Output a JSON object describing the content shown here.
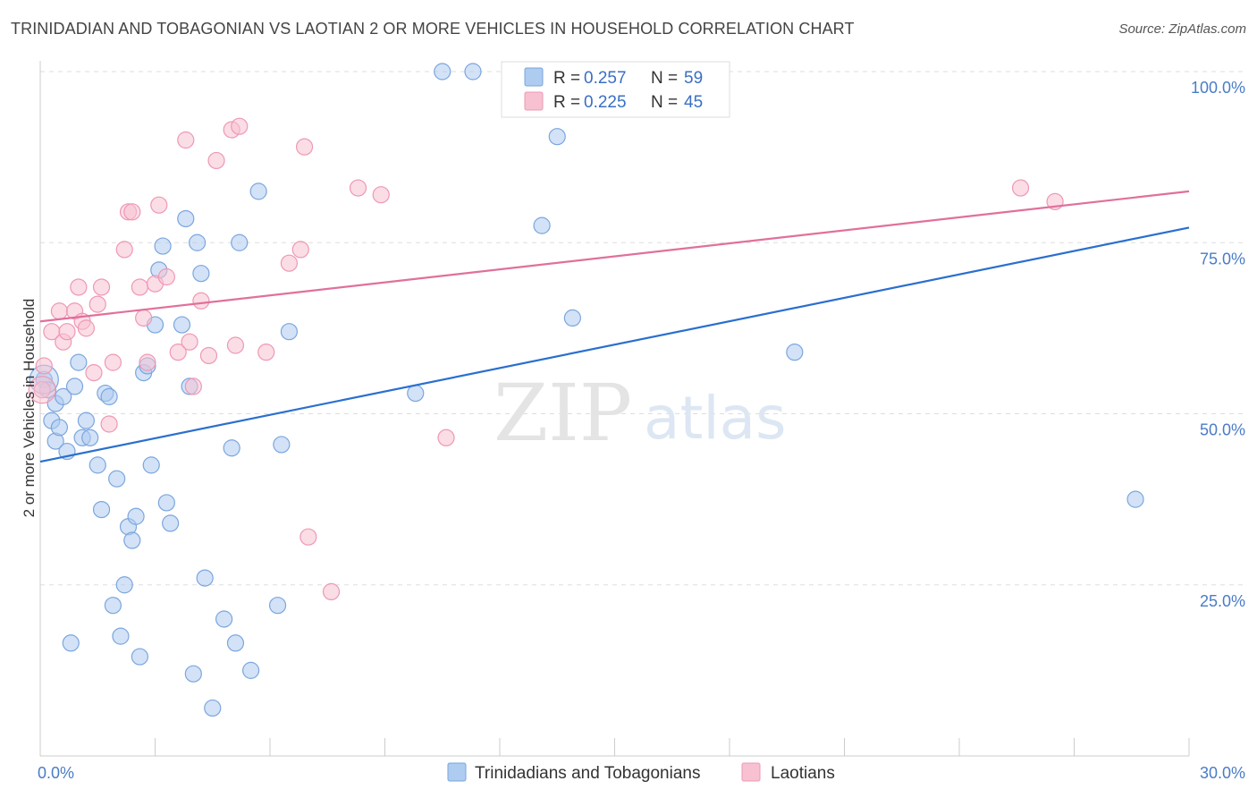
{
  "title": "TRINIDADIAN AND TOBAGONIAN VS LAOTIAN 2 OR MORE VEHICLES IN HOUSEHOLD CORRELATION CHART",
  "source": "Source: ZipAtlas.com",
  "watermark": {
    "zip": "ZIP",
    "atlas": "atlas"
  },
  "colors": {
    "blue_fill": "#aecbf0",
    "blue_stroke": "#7aa6de",
    "blue_line": "#2a6fcf",
    "pink_fill": "#f7c1d1",
    "pink_stroke": "#ee98b4",
    "pink_line": "#e0709a",
    "grid": "#dddddd",
    "axis_label": "#4a7cc7"
  },
  "legend": {
    "rows": [
      {
        "r_label": "R = ",
        "r_value": "0.257",
        "n_label": "N = ",
        "n_value": "59"
      },
      {
        "r_label": "R = ",
        "r_value": "0.225",
        "n_label": "N = ",
        "n_value": "45"
      }
    ]
  },
  "chart_data": {
    "type": "scatter",
    "title": "TRINIDADIAN AND TOBAGONIAN VS LAOTIAN 2 OR MORE VEHICLES IN HOUSEHOLD CORRELATION CHART",
    "xlabel": "",
    "ylabel": "2 or more Vehicles in Household",
    "xlim": [
      0,
      30
    ],
    "ylim": [
      0,
      100
    ],
    "x_tick_labels": [
      "0.0%",
      "30.0%"
    ],
    "y_tick_values": [
      25,
      50,
      75,
      100
    ],
    "y_tick_labels": [
      "25.0%",
      "50.0%",
      "75.0%",
      "100.0%"
    ],
    "grid": true,
    "legend_position": "top-center",
    "series": [
      {
        "name": "Trinidadians and Tobagonians",
        "color": "#aecbf0",
        "r": "0.257",
        "n": "59",
        "trend": {
          "x": [
            0,
            30
          ],
          "y": [
            43.0,
            77.2
          ]
        },
        "points": [
          [
            0.1,
            55.0
          ],
          [
            0.2,
            53.5
          ],
          [
            0.3,
            49.0
          ],
          [
            0.4,
            51.5
          ],
          [
            0.4,
            46.0
          ],
          [
            0.5,
            48.0
          ],
          [
            0.6,
            52.5
          ],
          [
            0.7,
            44.5
          ],
          [
            0.8,
            16.5
          ],
          [
            0.9,
            54.0
          ],
          [
            1.0,
            57.5
          ],
          [
            1.1,
            46.5
          ],
          [
            1.2,
            49.0
          ],
          [
            1.3,
            46.5
          ],
          [
            1.5,
            42.5
          ],
          [
            1.6,
            36.0
          ],
          [
            1.7,
            53.0
          ],
          [
            1.8,
            52.5
          ],
          [
            1.9,
            22.0
          ],
          [
            2.0,
            40.5
          ],
          [
            2.1,
            17.5
          ],
          [
            2.2,
            25.0
          ],
          [
            2.3,
            33.5
          ],
          [
            2.4,
            31.5
          ],
          [
            2.5,
            35.0
          ],
          [
            2.6,
            14.5
          ],
          [
            2.7,
            56.0
          ],
          [
            2.8,
            57.0
          ],
          [
            2.9,
            42.5
          ],
          [
            3.0,
            63.0
          ],
          [
            3.1,
            71.0
          ],
          [
            3.2,
            74.5
          ],
          [
            3.3,
            37.0
          ],
          [
            3.4,
            34.0
          ],
          [
            3.7,
            63.0
          ],
          [
            3.8,
            78.5
          ],
          [
            3.9,
            54.0
          ],
          [
            4.0,
            12.0
          ],
          [
            4.1,
            75.0
          ],
          [
            4.2,
            70.5
          ],
          [
            4.3,
            26.0
          ],
          [
            4.5,
            7.0
          ],
          [
            4.8,
            20.0
          ],
          [
            5.0,
            45.0
          ],
          [
            5.1,
            16.5
          ],
          [
            5.2,
            75.0
          ],
          [
            5.5,
            12.5
          ],
          [
            5.7,
            82.5
          ],
          [
            6.2,
            22.0
          ],
          [
            6.3,
            45.5
          ],
          [
            6.5,
            62.0
          ],
          [
            9.8,
            53.0
          ],
          [
            10.5,
            100.0
          ],
          [
            11.3,
            100.0
          ],
          [
            13.5,
            90.5
          ],
          [
            13.1,
            77.5
          ],
          [
            13.9,
            64.0
          ],
          [
            19.7,
            59.0
          ],
          [
            28.6,
            37.5
          ]
        ]
      },
      {
        "name": "Laotians",
        "color": "#f7c1d1",
        "r": "0.225",
        "n": "45",
        "trend": {
          "x": [
            0,
            30
          ],
          "y": [
            63.5,
            82.5
          ]
        },
        "points": [
          [
            0.1,
            57.0
          ],
          [
            0.3,
            62.0
          ],
          [
            0.5,
            65.0
          ],
          [
            0.6,
            60.5
          ],
          [
            0.7,
            62.0
          ],
          [
            0.9,
            65.0
          ],
          [
            1.0,
            68.5
          ],
          [
            1.1,
            63.5
          ],
          [
            1.2,
            62.5
          ],
          [
            1.4,
            56.0
          ],
          [
            1.5,
            66.0
          ],
          [
            1.6,
            68.5
          ],
          [
            1.8,
            48.5
          ],
          [
            1.9,
            57.5
          ],
          [
            2.2,
            74.0
          ],
          [
            2.3,
            79.5
          ],
          [
            2.4,
            79.5
          ],
          [
            2.6,
            68.5
          ],
          [
            2.7,
            64.0
          ],
          [
            2.8,
            57.5
          ],
          [
            3.0,
            69.0
          ],
          [
            3.1,
            80.5
          ],
          [
            3.3,
            70.0
          ],
          [
            3.6,
            59.0
          ],
          [
            3.8,
            90.0
          ],
          [
            3.9,
            60.5
          ],
          [
            4.0,
            54.0
          ],
          [
            4.2,
            66.5
          ],
          [
            4.4,
            58.5
          ],
          [
            4.6,
            87.0
          ],
          [
            5.0,
            91.5
          ],
          [
            5.1,
            60.0
          ],
          [
            5.2,
            92.0
          ],
          [
            5.9,
            59.0
          ],
          [
            6.5,
            72.0
          ],
          [
            6.8,
            74.0
          ],
          [
            6.9,
            89.0
          ],
          [
            7.0,
            32.0
          ],
          [
            7.6,
            24.0
          ],
          [
            8.3,
            83.0
          ],
          [
            8.9,
            82.0
          ],
          [
            10.6,
            46.5
          ],
          [
            25.6,
            83.0
          ],
          [
            26.5,
            81.0
          ],
          [
            0.05,
            53.5
          ]
        ]
      }
    ]
  }
}
